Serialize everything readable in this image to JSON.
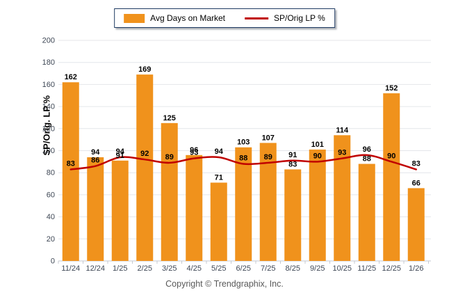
{
  "legend": {
    "items": [
      {
        "label": "Avg Days on Market",
        "type": "bar",
        "color": "#F0921C"
      },
      {
        "label": "SP/Orig LP %",
        "type": "line",
        "color": "#C00000"
      }
    ]
  },
  "chart_data": {
    "type": "bar+line",
    "categories": [
      "11/24",
      "12/24",
      "1/25",
      "2/25",
      "3/25",
      "4/25",
      "5/25",
      "6/25",
      "7/25",
      "8/25",
      "9/25",
      "10/25",
      "11/25",
      "12/25",
      "1/26"
    ],
    "series": [
      {
        "name": "Avg Days on Market",
        "type": "bar",
        "color": "#F0921C",
        "values": [
          162,
          94,
          91,
          169,
          125,
          96,
          71,
          103,
          107,
          83,
          101,
          114,
          88,
          152,
          66
        ]
      },
      {
        "name": "SP/Orig LP %",
        "type": "line",
        "color": "#C00000",
        "values": [
          83,
          86,
          94,
          92,
          89,
          93,
          94,
          88,
          89,
          91,
          90,
          93,
          96,
          90,
          83
        ]
      }
    ],
    "ylabel": "SP/Orig. LP %",
    "ylim": [
      0,
      200
    ],
    "ytick_step": 20,
    "grid": true,
    "data_labels": true,
    "legend_position": "top-center"
  },
  "footer": {
    "copyright": "Copyright © Trendgraphix, Inc."
  },
  "style": {
    "grid_color": "#E4E6EA",
    "axis_color": "#C5CAD1",
    "tick_label_color": "#3D4654",
    "value_label_color": "#000000"
  }
}
